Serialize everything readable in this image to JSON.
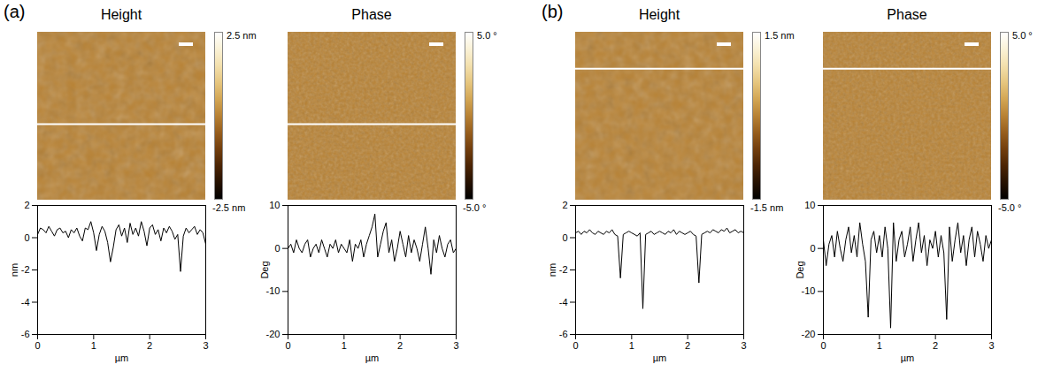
{
  "chart_data": [
    {
      "type": "line",
      "panel": "(a)",
      "title": "Height",
      "xlabel": "µm",
      "ylabel": "nm",
      "color": "#000000",
      "x": [
        0,
        0.05,
        0.1,
        0.15,
        0.2,
        0.25,
        0.3,
        0.35,
        0.4,
        0.45,
        0.5,
        0.55,
        0.6,
        0.65,
        0.7,
        0.75,
        0.8,
        0.85,
        0.9,
        0.95,
        1,
        1.05,
        1.1,
        1.15,
        1.2,
        1.25,
        1.3,
        1.35,
        1.4,
        1.45,
        1.5,
        1.55,
        1.6,
        1.65,
        1.7,
        1.75,
        1.8,
        1.85,
        1.9,
        1.95,
        2,
        2.05,
        2.1,
        2.15,
        2.2,
        2.25,
        2.3,
        2.35,
        2.4,
        2.45,
        2.5,
        2.55,
        2.6,
        2.65,
        2.7,
        2.75,
        2.8,
        2.85,
        2.9,
        2.95,
        3
      ],
      "values": [
        0.2,
        0.6,
        0.5,
        0.3,
        0.7,
        0.4,
        0.1,
        0.5,
        0.6,
        0.3,
        0.4,
        0.0,
        0.5,
        0.3,
        0.6,
        0.1,
        -0.2,
        0.6,
        0.5,
        1.0,
        0.3,
        -0.8,
        0.2,
        0.7,
        0.4,
        -0.3,
        -1.5,
        -0.6,
        0.5,
        0.8,
        0.1,
        0.6,
        -0.3,
        0.9,
        0.2,
        0.6,
        0.1,
        1.0,
        0.4,
        -0.5,
        0.6,
        0.8,
        0.2,
        0.5,
        -0.2,
        0.6,
        0.3,
        0.7,
        0.4,
        -0.1,
        0.2,
        -2.1,
        0.1,
        0.6,
        0.3,
        0.5,
        0.7,
        0.2,
        0.5,
        0.3,
        -0.4
      ],
      "xlim": [
        0,
        3
      ],
      "xticks": [
        0,
        1,
        2,
        3
      ],
      "ylim": [
        -6,
        2
      ],
      "yticks": [
        -6,
        -4,
        -2,
        0,
        2
      ],
      "colorbar": {
        "range": [
          -2.5,
          2.5
        ],
        "ticks": [
          {
            "value": 2.5,
            "label": "2.5 nm"
          },
          {
            "value": -2.5,
            "label": "-2.5 nm"
          }
        ]
      }
    },
    {
      "type": "line",
      "title": "Phase",
      "xlabel": "µm",
      "ylabel": "Deg",
      "color": "#000000",
      "x": [
        0,
        0.05,
        0.1,
        0.15,
        0.2,
        0.25,
        0.3,
        0.35,
        0.4,
        0.45,
        0.5,
        0.55,
        0.6,
        0.65,
        0.7,
        0.75,
        0.8,
        0.85,
        0.9,
        0.95,
        1,
        1.05,
        1.1,
        1.15,
        1.2,
        1.25,
        1.3,
        1.35,
        1.4,
        1.45,
        1.5,
        1.55,
        1.6,
        1.65,
        1.7,
        1.75,
        1.8,
        1.85,
        1.9,
        1.95,
        2,
        2.05,
        2.1,
        2.15,
        2.2,
        2.25,
        2.3,
        2.35,
        2.4,
        2.45,
        2.5,
        2.55,
        2.6,
        2.65,
        2.7,
        2.75,
        2.8,
        2.85,
        2.9,
        2.95,
        3
      ],
      "values": [
        0,
        1,
        -1,
        2,
        0,
        -1,
        1,
        2,
        -2,
        0,
        1,
        -1,
        2,
        0,
        -2,
        1,
        0,
        2,
        -1,
        1,
        0,
        -1,
        2,
        -3,
        1,
        0,
        2,
        -2,
        1,
        3,
        5,
        8,
        -2,
        1,
        4,
        6,
        -1,
        2,
        -3,
        0,
        4,
        1,
        -2,
        3,
        -1,
        2,
        0,
        -3,
        1,
        5,
        0,
        -6,
        2,
        -1,
        3,
        0,
        -2,
        1,
        2,
        -1,
        0
      ],
      "xlim": [
        0,
        3
      ],
      "xticks": [
        0,
        1,
        2,
        3
      ],
      "ylim": [
        -20,
        10
      ],
      "yticks": [
        -20,
        -10,
        0,
        10
      ],
      "colorbar": {
        "range": [
          -5,
          5
        ],
        "ticks": [
          {
            "value": 5,
            "label": "5.0 °"
          },
          {
            "value": -5,
            "label": "-5.0 °"
          }
        ]
      }
    },
    {
      "type": "line",
      "panel": "(b)",
      "title": "Height",
      "xlabel": "µm",
      "ylabel": "nm",
      "color": "#000000",
      "x": [
        0,
        0.05,
        0.1,
        0.15,
        0.2,
        0.25,
        0.3,
        0.35,
        0.4,
        0.45,
        0.5,
        0.55,
        0.6,
        0.65,
        0.7,
        0.75,
        0.8,
        0.85,
        0.9,
        0.95,
        1,
        1.05,
        1.1,
        1.15,
        1.2,
        1.25,
        1.3,
        1.35,
        1.4,
        1.45,
        1.5,
        1.55,
        1.6,
        1.65,
        1.7,
        1.75,
        1.8,
        1.85,
        1.9,
        1.95,
        2,
        2.05,
        2.1,
        2.15,
        2.2,
        2.25,
        2.3,
        2.35,
        2.4,
        2.45,
        2.5,
        2.55,
        2.6,
        2.65,
        2.7,
        2.75,
        2.8,
        2.85,
        2.9,
        2.95,
        3
      ],
      "values": [
        0.3,
        0.4,
        0.2,
        0.4,
        0.3,
        0.5,
        0.3,
        0.2,
        0.4,
        0.3,
        0.2,
        0.4,
        0.3,
        0.5,
        0.2,
        0.1,
        -2.5,
        0.2,
        0.3,
        0.4,
        0.3,
        0.2,
        0.1,
        0.3,
        -4.4,
        0.2,
        0.3,
        0.4,
        0.2,
        0.3,
        0.4,
        0.3,
        0.2,
        0.4,
        0.3,
        0.5,
        0.2,
        0.4,
        0.3,
        0.2,
        0.3,
        0.4,
        0.2,
        0.1,
        -2.8,
        0.2,
        0.3,
        0.4,
        0.3,
        0.5,
        0.4,
        0.3,
        0.5,
        0.4,
        0.6,
        0.3,
        0.4,
        0.5,
        0.3,
        0.4,
        0.3
      ],
      "xlim": [
        0,
        3
      ],
      "xticks": [
        0,
        1,
        2,
        3
      ],
      "ylim": [
        -6,
        2
      ],
      "yticks": [
        -6,
        -4,
        -2,
        0,
        2
      ],
      "colorbar": {
        "range": [
          -1.5,
          1.5
        ],
        "ticks": [
          {
            "value": 1.5,
            "label": "1.5 nm"
          },
          {
            "value": -1.5,
            "label": "-1.5 nm"
          }
        ]
      }
    },
    {
      "type": "line",
      "title": "Phase",
      "xlabel": "µm",
      "ylabel": "Deg",
      "color": "#000000",
      "x": [
        0,
        0.05,
        0.1,
        0.15,
        0.2,
        0.25,
        0.3,
        0.35,
        0.4,
        0.45,
        0.5,
        0.55,
        0.6,
        0.65,
        0.7,
        0.75,
        0.8,
        0.85,
        0.9,
        0.95,
        1,
        1.05,
        1.1,
        1.15,
        1.2,
        1.25,
        1.3,
        1.35,
        1.4,
        1.45,
        1.5,
        1.55,
        1.6,
        1.65,
        1.7,
        1.75,
        1.8,
        1.85,
        1.9,
        1.95,
        2,
        2.05,
        2.1,
        2.15,
        2.2,
        2.25,
        2.3,
        2.35,
        2.4,
        2.45,
        2.5,
        2.55,
        2.6,
        2.65,
        2.7,
        2.75,
        2.8,
        2.85,
        2.9,
        2.95,
        3
      ],
      "values": [
        2,
        -4,
        1,
        3,
        -2,
        4,
        0,
        -3,
        2,
        5,
        -1,
        3,
        -2,
        6,
        1,
        -3,
        -16,
        2,
        4,
        -1,
        3,
        -2,
        5,
        0,
        -18.5,
        6,
        -3,
        2,
        4,
        -2,
        1,
        5,
        -3,
        2,
        6,
        -1,
        3,
        -4,
        2,
        0,
        4,
        -2,
        3,
        -1,
        -16.5,
        5,
        -3,
        2,
        6,
        -1,
        3,
        -4,
        2,
        5,
        -2,
        4,
        1,
        -3,
        3,
        0,
        2
      ],
      "xlim": [
        0,
        3
      ],
      "xticks": [
        0,
        1,
        2,
        3
      ],
      "ylim": [
        -20,
        10
      ],
      "yticks": [
        -20,
        -10,
        0,
        10
      ],
      "colorbar": {
        "range": [
          -5,
          5
        ],
        "ticks": [
          {
            "value": 5,
            "label": "5.0 °"
          },
          {
            "value": -5,
            "label": "-5.0 °"
          }
        ]
      }
    }
  ]
}
